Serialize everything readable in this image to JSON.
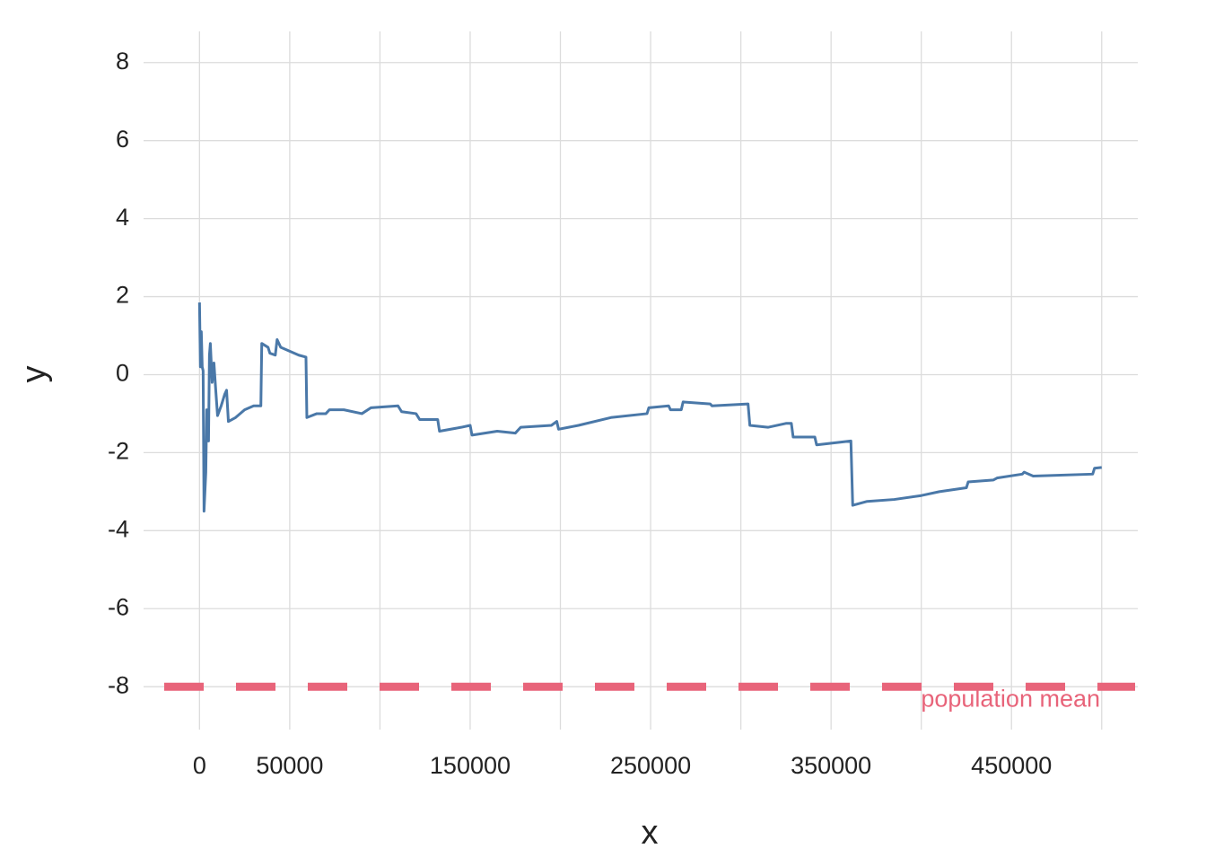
{
  "chart_data": {
    "type": "line",
    "x_label": "x",
    "y_label": "y",
    "xlim": [
      -31000,
      520000
    ],
    "ylim": [
      -9.1,
      8.8
    ],
    "xticks": [
      0,
      50000,
      150000,
      250000,
      350000,
      450000
    ],
    "xgrid": [
      0,
      50000,
      100000,
      150000,
      200000,
      250000,
      300000,
      350000,
      400000,
      450000,
      500000
    ],
    "yticks": [
      -8,
      -6,
      -4,
      -2,
      0,
      2,
      4,
      6,
      8
    ],
    "grid": true,
    "series": [
      {
        "color": "#4a78a8",
        "x": [
          0,
          500,
          1000,
          1500,
          2000,
          2500,
          3500,
          4000,
          5000,
          5500,
          6000,
          7000,
          8000,
          9000,
          10000,
          12000,
          14000,
          15000,
          16000,
          20000,
          25000,
          30000,
          34000,
          34500,
          38000,
          39000,
          42000,
          43000,
          45000,
          50000,
          55000,
          59000,
          59500,
          65000,
          70000,
          72000,
          80000,
          90000,
          95000,
          110000,
          112000,
          120000,
          122000,
          132000,
          133000,
          145000,
          150000,
          151000,
          165000,
          175000,
          178000,
          195000,
          198000,
          199000,
          210000,
          228000,
          248000,
          249000,
          260000,
          261000,
          267000,
          268000,
          283000,
          284000,
          304000,
          305000,
          315000,
          325000,
          328000,
          329000,
          341000,
          342000,
          361000,
          362000,
          370000,
          385000,
          400000,
          410000,
          425000,
          426000,
          440000,
          442000,
          456000,
          457000,
          462000,
          495000,
          496000,
          500000
        ],
        "values": [
          1.85,
          0.2,
          1.1,
          0.2,
          0.1,
          -3.5,
          -2.5,
          -0.9,
          -1.7,
          0.5,
          0.8,
          -0.2,
          0.3,
          -0.4,
          -1.05,
          -0.8,
          -0.5,
          -0.4,
          -1.2,
          -1.1,
          -0.9,
          -0.8,
          -0.8,
          0.8,
          0.7,
          0.55,
          0.5,
          0.9,
          0.7,
          0.6,
          0.5,
          0.45,
          -1.1,
          -1.0,
          -1.0,
          -0.9,
          -0.9,
          -1.0,
          -0.85,
          -0.8,
          -0.95,
          -1.0,
          -1.15,
          -1.15,
          -1.45,
          -1.35,
          -1.3,
          -1.55,
          -1.45,
          -1.5,
          -1.35,
          -1.3,
          -1.2,
          -1.4,
          -1.3,
          -1.1,
          -1.0,
          -0.85,
          -0.8,
          -0.9,
          -0.9,
          -0.7,
          -0.75,
          -0.8,
          -0.75,
          -1.3,
          -1.35,
          -1.25,
          -1.25,
          -1.6,
          -1.6,
          -1.8,
          -1.7,
          -3.35,
          -3.25,
          -3.2,
          -3.1,
          -3.0,
          -2.9,
          -2.75,
          -2.7,
          -2.65,
          -2.55,
          -2.5,
          -2.6,
          -2.55,
          -2.4,
          -2.38
        ]
      }
    ],
    "reference_line": {
      "value": -8,
      "label": "population mean",
      "color": "#e8647a"
    }
  }
}
